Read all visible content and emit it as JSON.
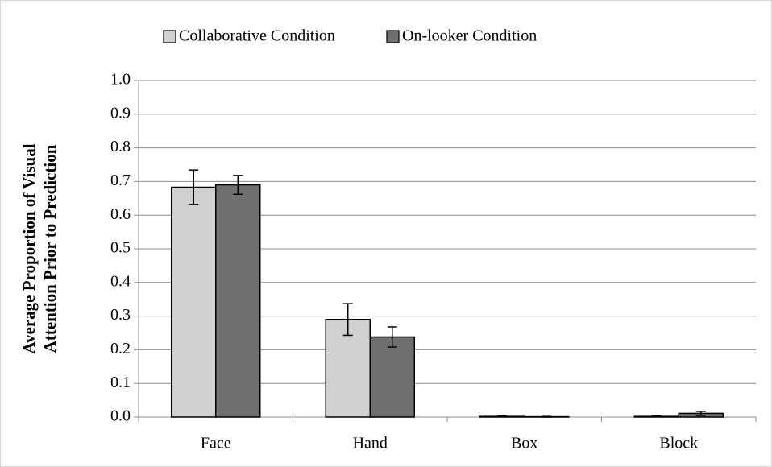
{
  "chart_data": {
    "type": "bar",
    "ylabel": [
      "Average Proportion of Visual",
      "Attention Prior to Prediction"
    ],
    "categories": [
      "Face",
      "Hand",
      "Box",
      "Block"
    ],
    "series": [
      {
        "name": "Collaborative Condition",
        "color": "#d0d0d0",
        "values": [
          0.683,
          0.29,
          0.002,
          0.002
        ],
        "errors": [
          0.051,
          0.047,
          0.001,
          0.001
        ]
      },
      {
        "name": "On-looker Condition",
        "color": "#707070",
        "values": [
          0.69,
          0.238,
          0.001,
          0.011
        ],
        "errors": [
          0.028,
          0.03,
          0.001,
          0.006
        ]
      }
    ],
    "ylim": [
      0,
      1
    ],
    "yticks": [
      {
        "value": 0,
        "label": "0.0"
      },
      0.1,
      0.2,
      0.3,
      0.4,
      0.5,
      0.6,
      0.7,
      0.8,
      0.9,
      {
        "value": 1,
        "label": "1.0"
      }
    ],
    "grid": true,
    "legend": "top"
  }
}
